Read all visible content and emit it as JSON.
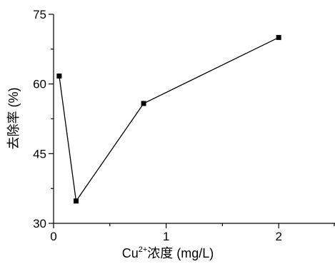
{
  "chart_data": {
    "type": "line",
    "xlabel": "Cu²⁺浓度 (mg/L)",
    "xlabel_parts": {
      "base": "Cu",
      "sup": "2+",
      "rest": "浓度 (mg/L)"
    },
    "ylabel": "去除率 (%)",
    "xlim": [
      0,
      2.5
    ],
    "ylim": [
      30,
      75
    ],
    "x_ticks": [
      0,
      1,
      2
    ],
    "x_tick_labels": [
      "0",
      "1",
      "2"
    ],
    "x_minor_ticks": [
      0.5,
      1.5,
      2.5
    ],
    "y_ticks": [
      30,
      45,
      60,
      75
    ],
    "y_tick_labels": [
      "30",
      "45",
      "60",
      "75"
    ],
    "y_minor_ticks": [
      37.5,
      52.5,
      67.5
    ],
    "grid": false,
    "series": [
      {
        "x": [
          0.05,
          0.2,
          0.8,
          2.0
        ],
        "y": [
          61.7,
          34.8,
          55.8,
          70.0
        ],
        "marker": "square",
        "color": "#000000"
      }
    ]
  }
}
